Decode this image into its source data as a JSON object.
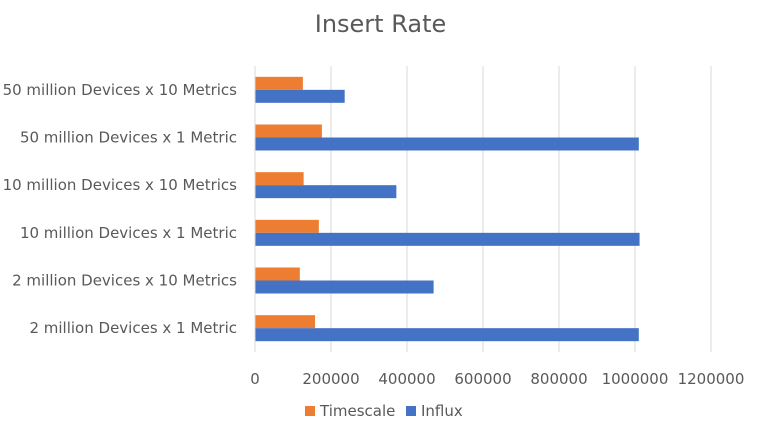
{
  "chart_data": {
    "type": "bar",
    "orientation": "horizontal",
    "title": "Insert Rate",
    "xlabel": "",
    "ylabel": "",
    "xlim": [
      0,
      1200000
    ],
    "x_ticks": [
      0,
      200000,
      400000,
      600000,
      800000,
      1000000,
      1200000
    ],
    "x_tick_labels": [
      "0",
      "200000",
      "400000",
      "600000",
      "800000",
      "1000000",
      "1200000"
    ],
    "categories": [
      "2 million Devices x 1 Metric",
      "2 million Devices x 10 Metrics",
      "10 million Devices x 1 Metric",
      "10 million Devices x 10 Metrics",
      "50 million Devices x 1 Metric",
      "50 million Devices x 10 Metrics"
    ],
    "series": [
      {
        "name": "Timescale",
        "color": "#ED7D31",
        "values": [
          158000,
          118000,
          168000,
          128000,
          176000,
          126000
        ]
      },
      {
        "name": "Influx",
        "color": "#4472C4",
        "values": [
          1010000,
          470000,
          1012000,
          372000,
          1010000,
          236000
        ]
      }
    ],
    "grid": true,
    "legend": "bottom"
  }
}
